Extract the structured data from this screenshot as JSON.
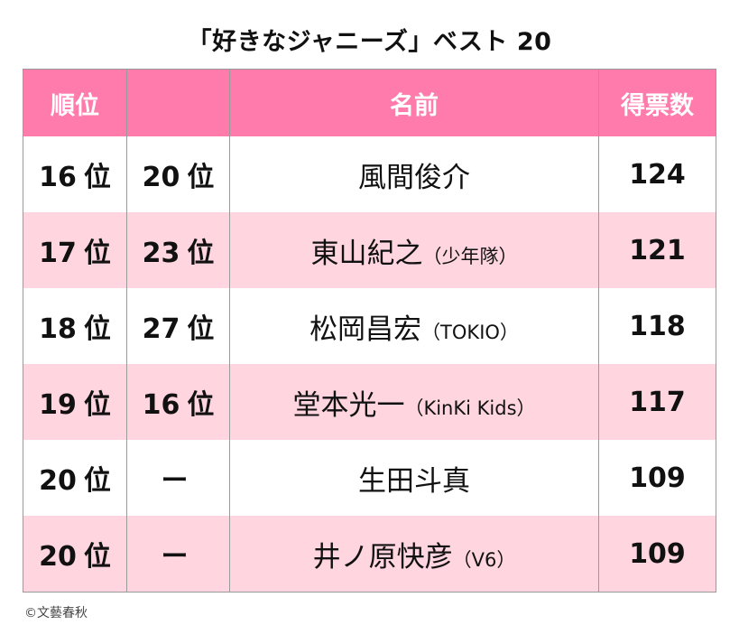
{
  "title": "「好きなジャニーズ」ベスト 20",
  "headers": {
    "rank": "順位",
    "prev": "",
    "name": "名前",
    "votes": "得票数"
  },
  "rows": [
    {
      "rank": "16",
      "prev": "20",
      "unit": "位",
      "prev_unit": "位",
      "name": "風間俊介",
      "group": "",
      "votes": "124"
    },
    {
      "rank": "17",
      "prev": "23",
      "unit": "位",
      "prev_unit": "位",
      "name": "東山紀之",
      "group": "（少年隊）",
      "votes": "121"
    },
    {
      "rank": "18",
      "prev": "27",
      "unit": "位",
      "prev_unit": "位",
      "name": "松岡昌宏",
      "group": "（TOKIO）",
      "votes": "118"
    },
    {
      "rank": "19",
      "prev": "16",
      "unit": "位",
      "prev_unit": "位",
      "name": "堂本光一",
      "group": "（KinKi Kids）",
      "votes": "117"
    },
    {
      "rank": "20",
      "prev": "ー",
      "unit": "位",
      "prev_unit": "",
      "name": "生田斗真",
      "group": "",
      "votes": "109"
    },
    {
      "rank": "20",
      "prev": "ー",
      "unit": "位",
      "prev_unit": "",
      "name": "井ノ原快彦",
      "group": "（V6）",
      "votes": "109"
    }
  ],
  "credit": "©文藝春秋"
}
